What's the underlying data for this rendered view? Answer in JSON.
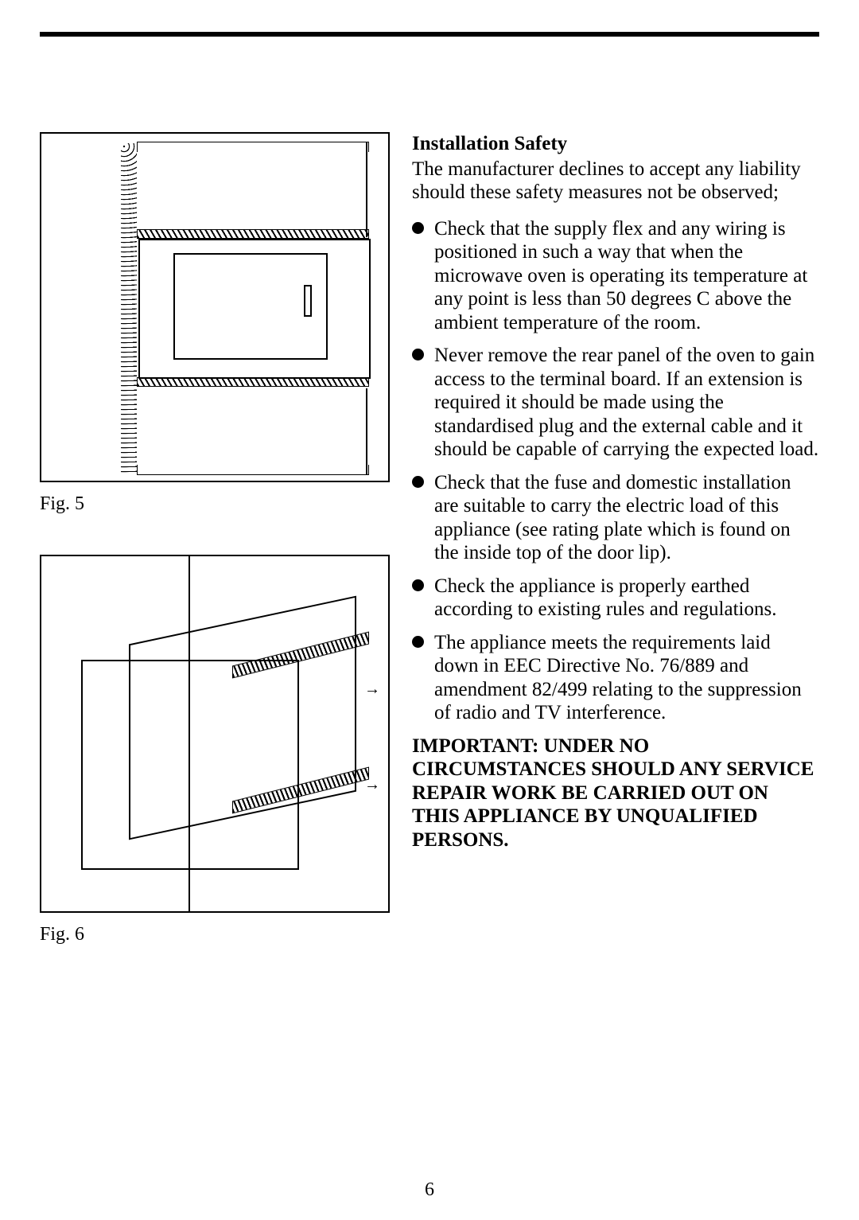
{
  "page": {
    "number": "6",
    "background_color": "#ffffff",
    "text_color": "#000000",
    "rule_color": "#000000"
  },
  "figures": {
    "fig5_label": "Fig. 5",
    "fig6_label": "Fig. 6"
  },
  "safety": {
    "heading": "Installation Safety",
    "intro": "The manufacturer declines to accept any liability should these safety measures not be observed;",
    "bullets": [
      "Check that the supply flex and any wiring is positioned in such a way that when the microwave oven is operating its temperature at any point is less than 50 degrees C above the ambient temperature of the room.",
      "Never remove the rear panel of the oven to gain access to the terminal board. If an extension is required it should be made using the standardised plug and the external cable and it should be capable of carrying the expected load.",
      "Check that the fuse and domestic installation are suitable to carry the electric load of this appliance (see rating plate which is found on the inside top of the door lip).",
      "Check the appliance is properly earthed according to existing rules and regulations.",
      "The appliance meets the requirements laid down in EEC Directive No. 76/889 and amendment 82/499 relating to the suppression of radio and TV interference."
    ],
    "important": "IMPORTANT: UNDER NO CIRCUMSTANCES SHOULD ANY SERVICE REPAIR WORK BE CARRIED OUT ON THIS APPLIANCE BY UNQUALIFIED PERSONS."
  }
}
